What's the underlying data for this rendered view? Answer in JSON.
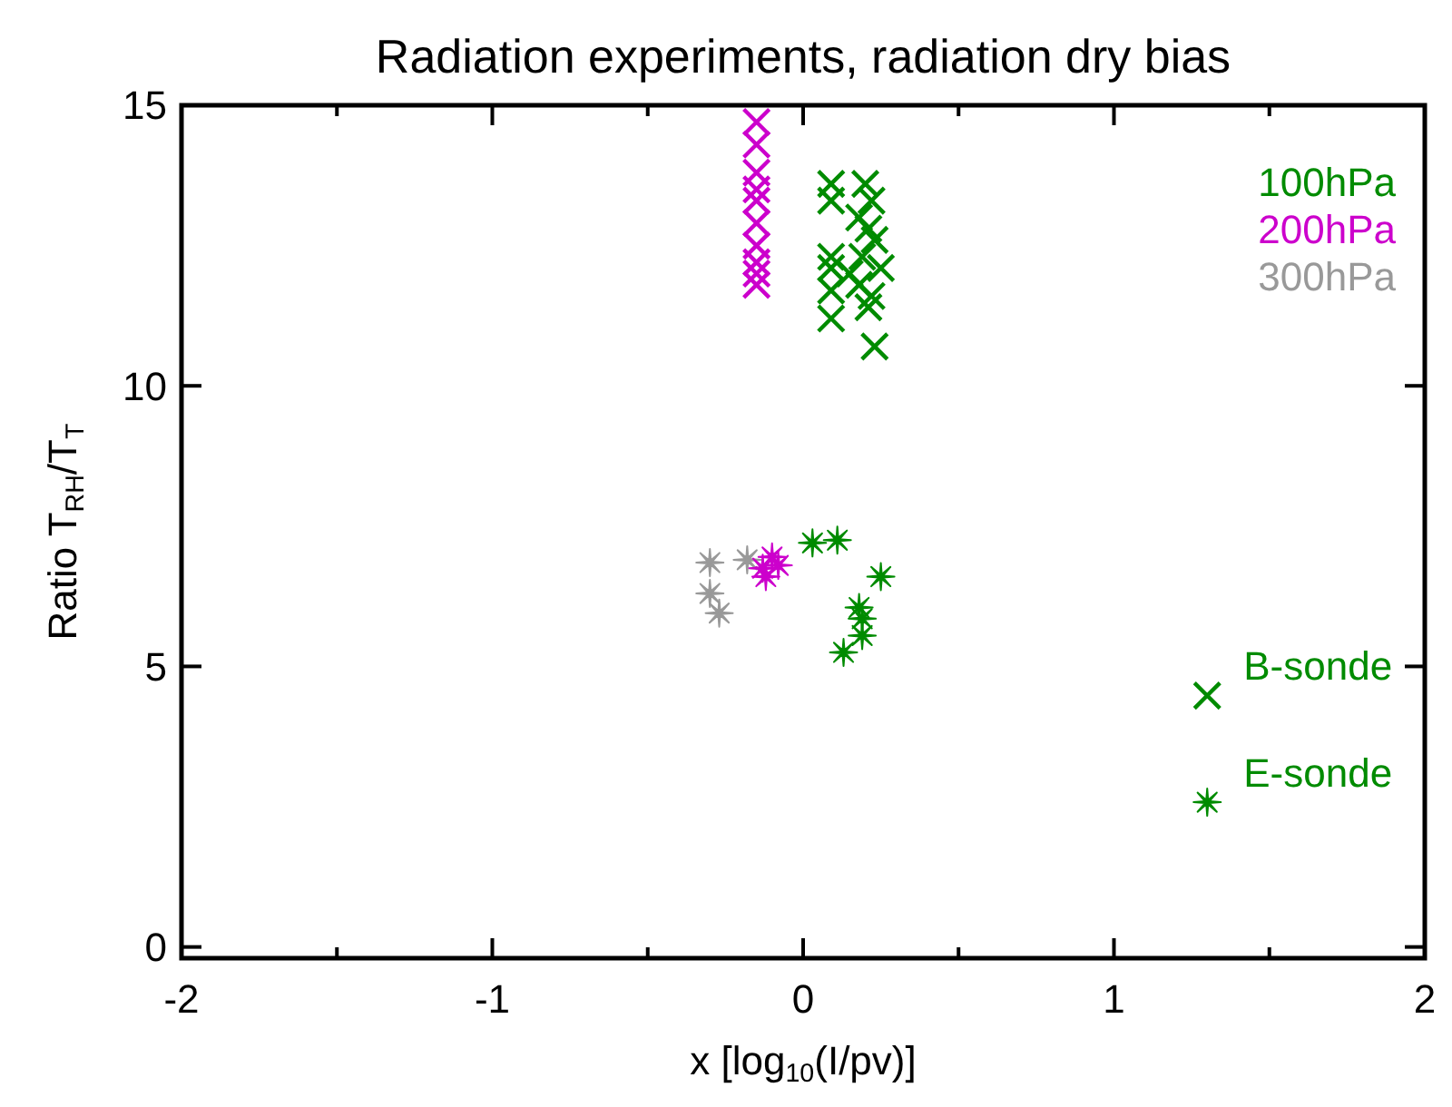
{
  "chart_data": {
    "type": "scatter",
    "title": "Radiation experiments, radiation dry bias",
    "xlabel": "x [log$_{10}$(I/pv)]",
    "ylabel": "Ratio T$_{RH}$/T$_{T}$",
    "xlim": [
      -2,
      2
    ],
    "ylim": [
      -0.2,
      15
    ],
    "xticks": [
      -2,
      {
        "value": -1.5,
        "label": null
      },
      -1,
      {
        "value": -0.5,
        "label": null
      },
      0,
      {
        "value": 0.5,
        "label": null
      },
      1,
      {
        "value": 1.5,
        "label": null
      },
      2
    ],
    "yticks": [
      0,
      5,
      10,
      15
    ],
    "grid": false,
    "legend": "top right",
    "annotations": [
      {
        "text": "B-sonde",
        "x": 1.3,
        "y": 4.5
      },
      {
        "text": "E-sonde",
        "x": 1.3,
        "y": 2.6
      }
    ],
    "series": [
      {
        "name": "100hPa",
        "color": "#008b00",
        "marker": "cross",
        "x": [
          0.09,
          0.09,
          0.09,
          0.09,
          0.09,
          0.09,
          0.2,
          0.22,
          0.18,
          0.21,
          0.23,
          0.19,
          0.25,
          0.15,
          0.18,
          0.22,
          0.21,
          0.23
        ],
        "values": [
          13.6,
          13.3,
          12.3,
          12.1,
          11.7,
          11.2,
          13.6,
          13.3,
          13.0,
          12.8,
          12.6,
          12.3,
          12.1,
          12.0,
          11.8,
          11.6,
          11.4,
          10.7
        ]
      },
      {
        "name": "200hPa",
        "color": "#cc00cc",
        "marker": "cross",
        "x": [
          -0.15,
          -0.15,
          -0.15,
          -0.15,
          -0.15,
          -0.15,
          -0.15,
          -0.15,
          -0.15,
          -0.15
        ],
        "values": [
          14.7,
          14.3,
          13.8,
          13.5,
          13.3,
          12.9,
          12.5,
          12.2,
          12.0,
          11.8
        ]
      },
      {
        "name": "300hPa",
        "color": "#999999",
        "marker": "star",
        "x": [
          -0.3,
          -0.3,
          -0.27,
          -0.18
        ],
        "values": [
          6.85,
          6.3,
          5.95,
          6.9
        ]
      },
      {
        "color": "#008b00",
        "marker": "star",
        "x": [
          0.03,
          0.11,
          0.25,
          0.18,
          0.19,
          0.19,
          0.13
        ],
        "values": [
          7.2,
          7.25,
          6.6,
          6.05,
          5.85,
          5.55,
          5.25
        ]
      },
      {
        "color": "#cc00cc",
        "marker": "star",
        "x": [
          -0.1,
          -0.12,
          -0.08,
          -0.13
        ],
        "values": [
          6.95,
          6.6,
          6.8,
          6.75
        ]
      },
      {
        "color": "#008b00",
        "marker": "cross",
        "x": [
          1.3
        ],
        "values": [
          4.48
        ]
      },
      {
        "color": "#008b00",
        "marker": "star",
        "x": [
          1.3
        ],
        "values": [
          2.58
        ]
      }
    ]
  }
}
